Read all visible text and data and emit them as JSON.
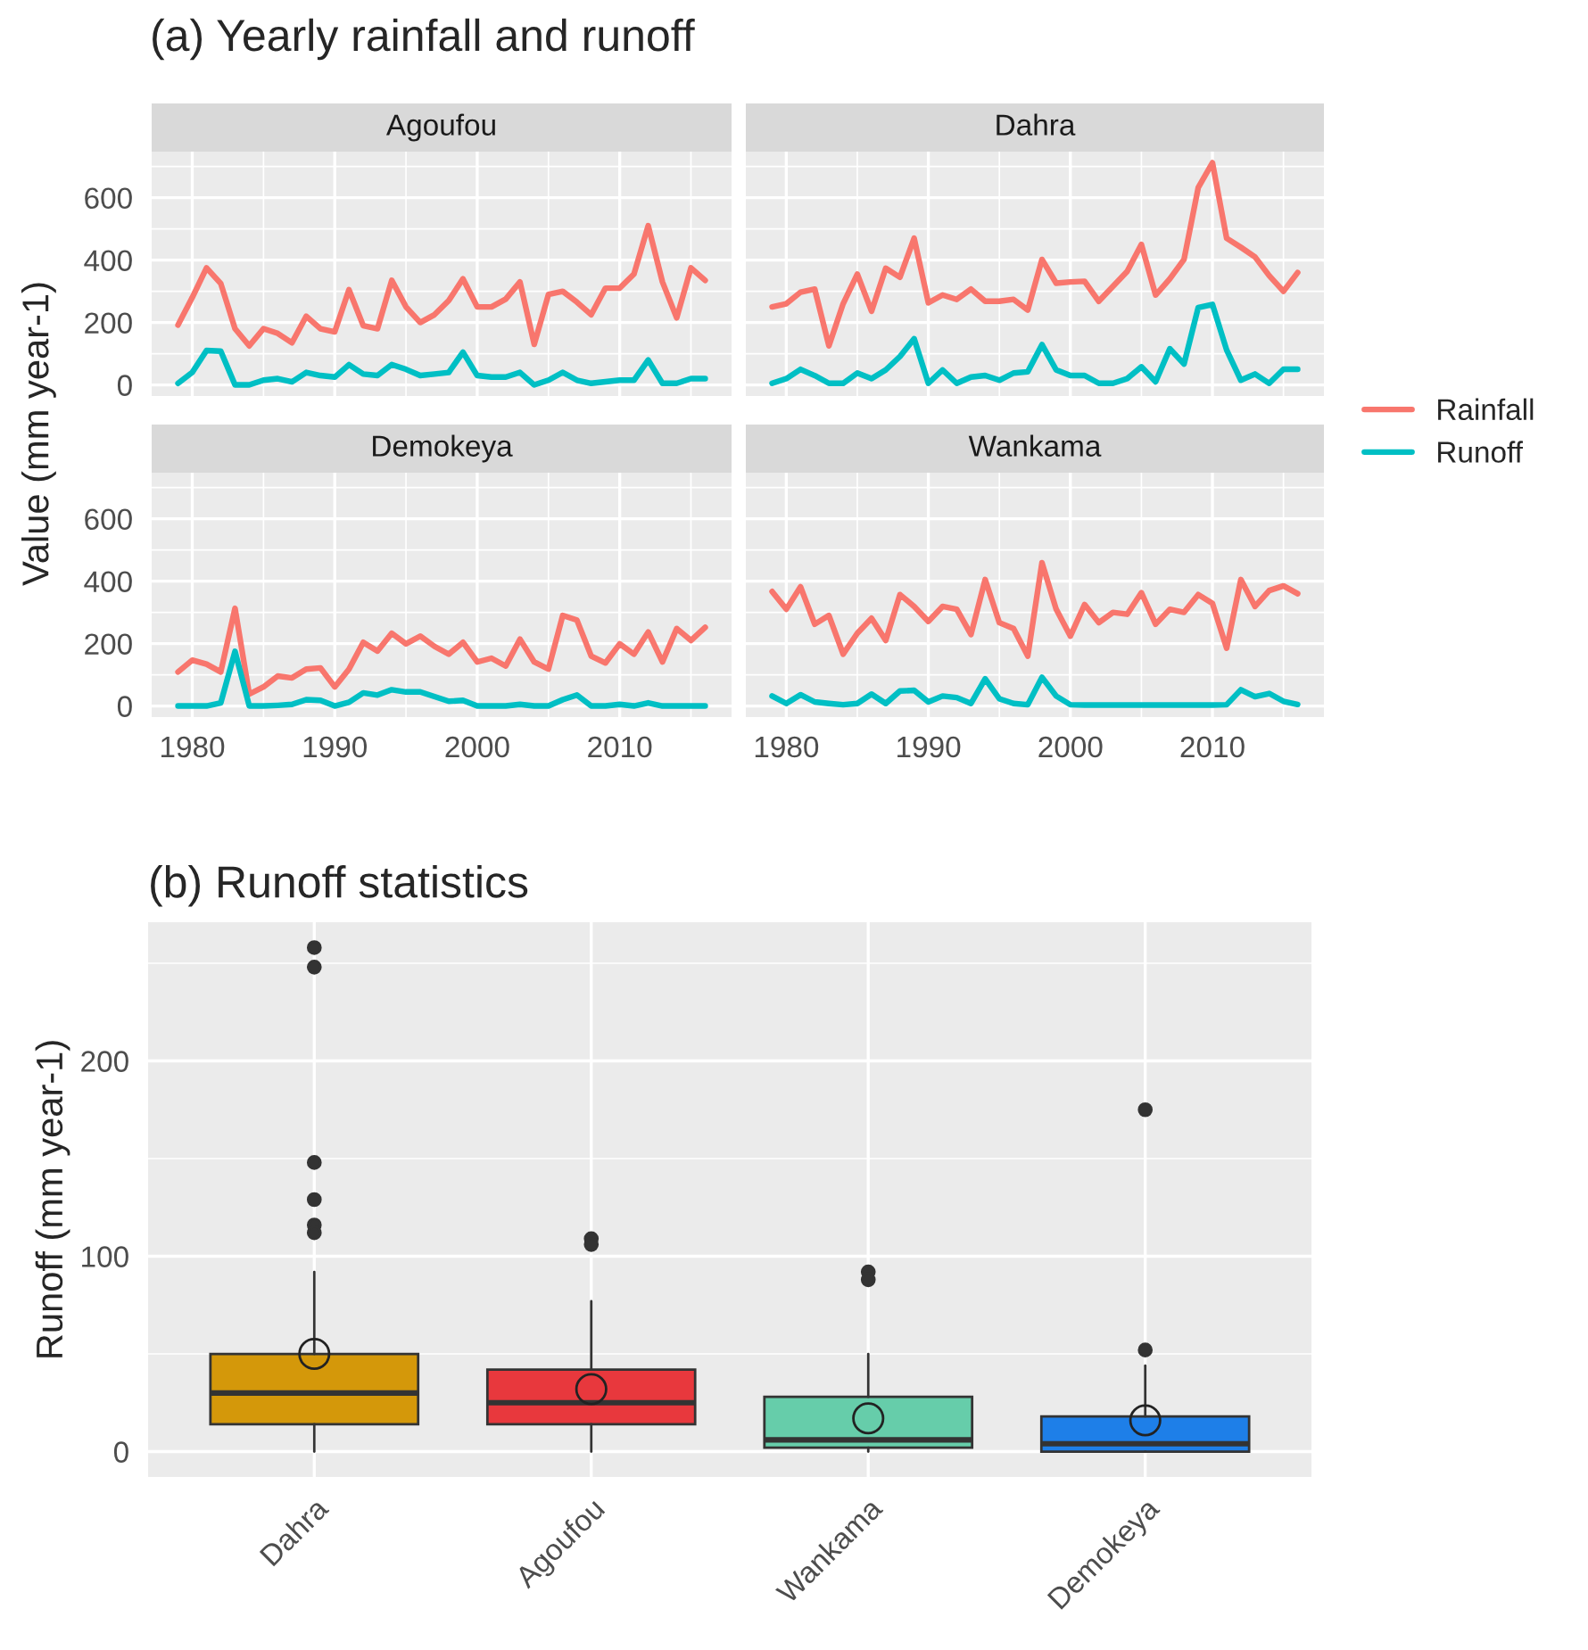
{
  "chart_data": [
    {
      "type": "line",
      "title": "Agoufou",
      "legend": "right",
      "annotations": [
        "(a) Yearly rainfall and runoff"
      ],
      "x": [
        1979,
        1980,
        1981,
        1982,
        1983,
        1984,
        1985,
        1986,
        1987,
        1988,
        1989,
        1990,
        1991,
        1992,
        1993,
        1994,
        1995,
        1996,
        1997,
        1998,
        1999,
        2000,
        2001,
        2002,
        2003,
        2004,
        2005,
        2006,
        2007,
        2008,
        2009,
        2010,
        2011,
        2012,
        2013,
        2014,
        2015,
        2016
      ],
      "series": [
        {
          "name": "Rainfall",
          "color": "#f8766d",
          "values": [
            192,
            280,
            375,
            325,
            180,
            125,
            180,
            165,
            135,
            220,
            180,
            170,
            305,
            190,
            180,
            335,
            250,
            200,
            225,
            270,
            340,
            250,
            250,
            275,
            330,
            130,
            290,
            300,
            265,
            225,
            310,
            310,
            355,
            510,
            330,
            215,
            375,
            335
          ]
        },
        {
          "name": "Runoff",
          "color": "#00bfc4",
          "values": [
            5,
            40,
            110,
            108,
            0,
            0,
            15,
            20,
            10,
            40,
            30,
            25,
            65,
            35,
            30,
            65,
            50,
            30,
            35,
            40,
            105,
            30,
            25,
            25,
            40,
            0,
            15,
            40,
            15,
            5,
            10,
            15,
            15,
            80,
            5,
            5,
            20,
            20
          ]
        }
      ],
      "xlim": [
        1977.15,
        2017.85
      ],
      "ylim": [
        -35.6,
        747.6
      ],
      "xticks": [
        1980,
        1990,
        2000,
        2010
      ],
      "yticks": [
        0,
        200,
        400,
        600
      ],
      "grid": true,
      "tick_labels": "y"
    },
    {
      "type": "line",
      "title": "Dahra",
      "x": [
        1979,
        1980,
        1981,
        1982,
        1983,
        1984,
        1985,
        1986,
        1987,
        1988,
        1989,
        1990,
        1991,
        1992,
        1993,
        1994,
        1995,
        1996,
        1997,
        1998,
        1999,
        2000,
        2001,
        2002,
        2003,
        2004,
        2005,
        2006,
        2007,
        2008,
        2009,
        2010,
        2011,
        2012,
        2013,
        2014,
        2015,
        2016
      ],
      "series": [
        {
          "color": "#f8766d",
          "values": [
            250,
            260,
            297,
            307,
            125,
            260,
            355,
            236,
            374,
            345,
            470,
            263,
            288,
            274,
            307,
            268,
            268,
            274,
            240,
            402,
            326,
            330,
            332,
            268,
            316,
            364,
            450,
            288,
            340,
            402,
            632,
            712,
            470,
            441,
            410,
            350,
            300,
            360
          ]
        },
        {
          "color": "#00bfc4",
          "values": [
            5,
            20,
            50,
            30,
            5,
            5,
            38,
            20,
            48,
            91,
            148,
            5,
            48,
            5,
            25,
            30,
            15,
            38,
            42,
            129,
            48,
            30,
            30,
            5,
            5,
            20,
            58,
            10,
            116,
            67,
            248,
            258,
            112,
            15,
            35,
            5,
            50,
            50
          ]
        }
      ],
      "xlim": [
        1977.15,
        2017.85
      ],
      "ylim": [
        -35.6,
        747.6
      ],
      "xticks": [
        1980,
        1990,
        2000,
        2010
      ],
      "yticks": [
        0,
        200,
        400,
        600
      ],
      "grid": true,
      "tick_labels": false
    },
    {
      "type": "line",
      "title": "Demokeya",
      "ylabel": "Value (mm year-1)",
      "x": [
        1979,
        1980,
        1981,
        1982,
        1983,
        1984,
        1985,
        1986,
        1987,
        1988,
        1989,
        1990,
        1991,
        1992,
        1993,
        1994,
        1995,
        1996,
        1997,
        1998,
        1999,
        2000,
        2001,
        2002,
        2003,
        2004,
        2005,
        2006,
        2007,
        2008,
        2009,
        2010,
        2011,
        2012,
        2013,
        2014,
        2015,
        2016
      ],
      "series": [
        {
          "color": "#f8766d",
          "values": [
            109,
            147,
            134,
            109,
            313,
            38,
            61,
            96,
            90,
            118,
            122,
            61,
            118,
            204,
            176,
            233,
            199,
            224,
            191,
            166,
            204,
            141,
            153,
            128,
            214,
            141,
            118,
            290,
            275,
            160,
            138,
            199,
            166,
            237,
            141,
            248,
            210,
            252
          ]
        },
        {
          "color": "#00bfc4",
          "values": [
            0,
            0,
            0,
            10,
            175,
            0,
            0,
            2,
            5,
            20,
            18,
            0,
            12,
            42,
            35,
            52,
            45,
            45,
            30,
            15,
            18,
            0,
            0,
            0,
            5,
            0,
            0,
            20,
            35,
            0,
            0,
            5,
            0,
            10,
            0,
            0,
            0,
            0
          ]
        }
      ],
      "xlim": [
        1977.15,
        2017.85
      ],
      "ylim": [
        -35.6,
        747.6
      ],
      "xticks": [
        1980,
        1990,
        2000,
        2010
      ],
      "yticks": [
        0,
        200,
        400,
        600
      ],
      "grid": true
    },
    {
      "type": "line",
      "title": "Wankama",
      "x": [
        1979,
        1980,
        1981,
        1982,
        1983,
        1984,
        1985,
        1986,
        1987,
        1988,
        1989,
        1990,
        1991,
        1992,
        1993,
        1994,
        1995,
        1996,
        1997,
        1998,
        1999,
        2000,
        2001,
        2002,
        2003,
        2004,
        2005,
        2006,
        2007,
        2008,
        2009,
        2010,
        2011,
        2012,
        2013,
        2014,
        2015,
        2016
      ],
      "series": [
        {
          "color": "#f8766d",
          "values": [
            367,
            310,
            382,
            262,
            290,
            166,
            233,
            281,
            210,
            357,
            319,
            271,
            319,
            310,
            229,
            405,
            267,
            248,
            160,
            459,
            310,
            224,
            325,
            267,
            300,
            294,
            363,
            262,
            310,
            300,
            357,
            329,
            185,
            405,
            319,
            370,
            385,
            360
          ]
        },
        {
          "color": "#00bfc4",
          "values": [
            32,
            8,
            36,
            13,
            8,
            4,
            8,
            38,
            8,
            48,
            50,
            13,
            32,
            27,
            8,
            87,
            23,
            8,
            4,
            92,
            32,
            4,
            3,
            3,
            3,
            3,
            3,
            3,
            3,
            3,
            3,
            3,
            4,
            52,
            30,
            40,
            15,
            5
          ]
        }
      ],
      "xlim": [
        1977.15,
        2017.85
      ],
      "ylim": [
        -35.6,
        747.6
      ],
      "xticks": [
        1980,
        1990,
        2000,
        2010
      ],
      "yticks": [
        0,
        200,
        400,
        600
      ],
      "grid": true,
      "tick_labels": "x"
    },
    {
      "type": "box",
      "title": "(b) Runoff statistics",
      "ylabel": "Runoff (mm year-1)",
      "categories": [
        "Dahra",
        "Agoufou",
        "Wankama",
        "Demokeya"
      ],
      "colors": [
        "#d4980a",
        "#e8383d",
        "#66cdaa",
        "#1e7fe8"
      ],
      "boxes": [
        {
          "low": 0,
          "q1": 14,
          "median": 30,
          "q3": 50,
          "high": 92,
          "mean": 50,
          "outliers": [
            258,
            248,
            148,
            129,
            116,
            112
          ]
        },
        {
          "low": 0,
          "q1": 14,
          "median": 25,
          "q3": 42,
          "high": 77,
          "mean": 32,
          "outliers": [
            109,
            106
          ]
        },
        {
          "low": 0,
          "q1": 2,
          "median": 6,
          "q3": 28,
          "high": 50,
          "mean": 17,
          "outliers": [
            92,
            88
          ]
        },
        {
          "low": 0,
          "q1": 0,
          "median": 4,
          "q3": 18,
          "high": 44,
          "mean": 16,
          "outliers": [
            175,
            52
          ]
        }
      ],
      "ylim": [
        -13,
        271
      ],
      "yticks": [
        0,
        100,
        200
      ],
      "grid": true
    }
  ]
}
